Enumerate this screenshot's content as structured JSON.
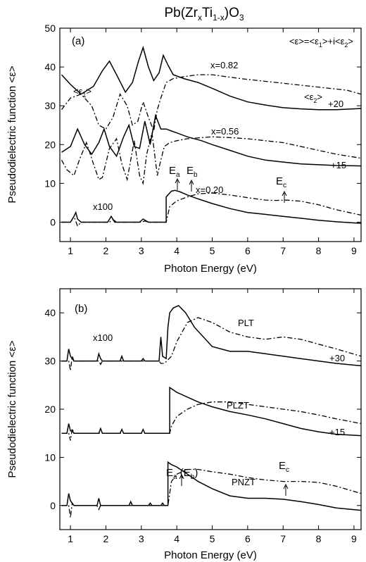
{
  "chart_data": [
    {
      "type": "line",
      "panel": "(a)",
      "title": "Pb(ZrxTi1-x)O3",
      "xlabel": "Photon Energy (eV)",
      "ylabel": "Pseudodielectric function <ε>",
      "xlim": [
        0.7,
        9.2
      ],
      "ylim": [
        -5,
        50
      ],
      "xticks": [
        1,
        2,
        3,
        4,
        5,
        6,
        7,
        8,
        9
      ],
      "yticks": [
        0,
        10,
        20,
        30,
        40,
        50
      ],
      "formula": "<ε>=<ε1>+i<ε2>",
      "annotations": [
        {
          "text": "<ε1>",
          "x": 1.3,
          "y": 36.5
        },
        {
          "text": "<ε2>",
          "x": 7.3,
          "y": 35
        },
        {
          "text": "+20",
          "x": 8.55,
          "y": 33.5
        },
        {
          "text": "x=0.82",
          "x": 5.0,
          "y": 39.5
        },
        {
          "text": "x=0.56",
          "x": 5.0,
          "y": 25.5
        },
        {
          "text": "+15",
          "x": 8.55,
          "y": 17.0
        },
        {
          "text": "x=0.20",
          "x": 4.5,
          "y": 7.8
        },
        {
          "text": "x100",
          "x": 1.5,
          "y": 3.8
        },
        {
          "text": "Ea",
          "x": 3.85,
          "y": 11.5
        },
        {
          "text": "Eb",
          "x": 4.35,
          "y": 11.5
        },
        {
          "text": "Ec",
          "x": 6.9,
          "y": 10.5
        }
      ],
      "arrows_at": [
        3.83,
        4.35,
        7.0
      ],
      "series": [
        {
          "name": "x=0.82 <ε1>",
          "style": "solid",
          "x": [
            0.75,
            1.0,
            1.3,
            1.65,
            1.9,
            2.1,
            2.3,
            2.55,
            2.75,
            2.92,
            3.05,
            3.2,
            3.35,
            3.5,
            3.62,
            3.75,
            3.9,
            4.2,
            4.6,
            5.0,
            5.5,
            6.0,
            6.5,
            7.0,
            7.5,
            8.0,
            8.5,
            9.2
          ],
          "y": [
            38.0,
            35.5,
            33.0,
            35.0,
            39.0,
            41.5,
            38.0,
            33.5,
            36.0,
            41.5,
            45.0,
            40.0,
            36.5,
            38.5,
            43.0,
            40.5,
            38.0,
            37.0,
            36.0,
            34.5,
            32.5,
            31.0,
            30.2,
            29.5,
            29.2,
            29.0,
            29.0,
            29.3
          ]
        },
        {
          "name": "x=0.82 <ε2>",
          "style": "dashdot",
          "x": [
            0.75,
            1.0,
            1.3,
            1.6,
            1.8,
            2.0,
            2.2,
            2.4,
            2.6,
            2.75,
            2.9,
            3.05,
            3.2,
            3.35,
            3.45,
            3.55,
            3.7,
            3.9,
            4.2,
            4.6,
            5.0,
            5.4,
            5.8,
            6.3,
            6.8,
            7.3,
            7.8,
            8.3,
            8.8,
            9.2
          ],
          "y": [
            29.0,
            32.0,
            33.0,
            30.0,
            25.0,
            24.0,
            27.0,
            33.0,
            30.0,
            25.0,
            26.0,
            31.0,
            27.0,
            23.5,
            29.0,
            32.0,
            36.0,
            37.0,
            37.5,
            38.0,
            38.0,
            37.5,
            37.0,
            36.5,
            36.0,
            35.5,
            35.0,
            34.5,
            34.0,
            33.0
          ]
        },
        {
          "name": "x=0.56 <ε1>",
          "style": "solid",
          "x": [
            0.75,
            1.0,
            1.2,
            1.4,
            1.6,
            1.8,
            1.95,
            2.1,
            2.3,
            2.5,
            2.65,
            2.8,
            2.95,
            3.1,
            3.25,
            3.4,
            3.55,
            3.7,
            3.85,
            4.0,
            4.3,
            4.7,
            5.0,
            5.5,
            6.0,
            6.5,
            7.0,
            7.5,
            8.0,
            8.5,
            9.2
          ],
          "y": [
            18.0,
            19.5,
            24.0,
            20.0,
            17.5,
            20.5,
            24.0,
            19.5,
            17.0,
            22.0,
            25.0,
            19.5,
            19.0,
            26.0,
            20.0,
            27.5,
            24.0,
            24.0,
            23.5,
            23.0,
            22.0,
            21.0,
            20.0,
            18.5,
            17.0,
            16.0,
            15.5,
            15.0,
            14.8,
            14.6,
            14.5
          ]
        },
        {
          "name": "x=0.56 <ε2>",
          "style": "dashdot",
          "x": [
            0.75,
            0.9,
            1.1,
            1.25,
            1.45,
            1.65,
            1.8,
            1.9,
            2.1,
            2.3,
            2.45,
            2.6,
            2.8,
            2.95,
            3.05,
            3.15,
            3.3,
            3.45,
            3.55,
            3.65,
            3.8,
            4.0,
            4.3,
            4.7,
            5.0,
            5.5,
            6.0,
            6.5,
            7.0,
            7.5,
            8.0,
            8.5,
            9.2
          ],
          "y": [
            16.0,
            13.5,
            12.0,
            16.0,
            20.5,
            15.0,
            11.0,
            11.5,
            19.0,
            21.5,
            15.0,
            11.0,
            21.0,
            12.0,
            10.0,
            17.5,
            23.0,
            12.0,
            16.0,
            19.5,
            20.5,
            21.0,
            21.5,
            21.8,
            22.0,
            21.8,
            21.5,
            21.0,
            20.5,
            19.5,
            18.5,
            17.5,
            16.5
          ]
        },
        {
          "name": "x=0.20 <ε1>",
          "style": "solid",
          "x": [
            0.75,
            1.0,
            1.1,
            1.15,
            1.2,
            1.3,
            1.6,
            2.05,
            2.15,
            2.25,
            2.5,
            2.95,
            3.05,
            3.2,
            3.5,
            3.7,
            3.7,
            3.85,
            3.95,
            4.1,
            4.3,
            4.6,
            5.0,
            5.5,
            6.0,
            6.5,
            7.0,
            7.5,
            8.0,
            8.5,
            9.2
          ],
          "y": [
            0.0,
            0.0,
            1.5,
            2.5,
            0.8,
            0.0,
            0.0,
            0.0,
            1.5,
            0.0,
            0.0,
            0.0,
            0.8,
            0.0,
            0.0,
            0.0,
            6.5,
            8.0,
            8.2,
            7.8,
            7.0,
            6.0,
            4.8,
            3.5,
            2.5,
            2.0,
            1.5,
            1.0,
            0.5,
            0.1,
            -0.3
          ]
        },
        {
          "name": "x=0.20 <ε2>",
          "style": "dashdot",
          "x": [
            0.75,
            1.0,
            1.1,
            1.2,
            1.3,
            1.6,
            2.1,
            2.2,
            2.3,
            3.0,
            3.1,
            3.2,
            3.7,
            3.8,
            4.0,
            4.3,
            4.6,
            5.0,
            5.5,
            6.0,
            6.5,
            6.8,
            7.1,
            7.5,
            8.0,
            8.5,
            9.2
          ],
          "y": [
            0.0,
            0.0,
            1.5,
            -1.0,
            0.0,
            0.0,
            0.0,
            0.7,
            0.0,
            0.0,
            0.3,
            0.0,
            0.0,
            4.0,
            5.5,
            6.5,
            7.3,
            7.5,
            7.0,
            6.3,
            5.7,
            5.6,
            5.7,
            5.4,
            4.5,
            3.2,
            1.8
          ]
        }
      ]
    },
    {
      "type": "line",
      "panel": "(b)",
      "xlabel": "Photon Energy (eV)",
      "ylabel": "Pseudodielectric function <ε>",
      "xlim": [
        0.7,
        9.2
      ],
      "ylim": [
        -5,
        45
      ],
      "xticks": [
        1,
        2,
        3,
        4,
        5,
        6,
        7,
        8,
        9
      ],
      "yticks": [
        0,
        10,
        20,
        30,
        40
      ],
      "annotations": [
        {
          "text": "x100",
          "x": 1.5,
          "y": 35.0
        },
        {
          "text": "PLT",
          "x": 5.5,
          "y": 41.0
        },
        {
          "text": "+30",
          "x": 8.4,
          "y": 32.5
        },
        {
          "text": "PLZT",
          "x": 5.3,
          "y": 25.5
        },
        {
          "text": "+15",
          "x": 8.4,
          "y": 17.5
        },
        {
          "text": "Ea (Eb)",
          "x": 4.2,
          "y": 11.0
        },
        {
          "text": "PNZT",
          "x": 5.5,
          "y": 7.5
        },
        {
          "text": "Ec",
          "x": 6.9,
          "y": 11.0
        }
      ],
      "arrows_at": [
        4.1,
        7.0
      ],
      "series": [
        {
          "name": "PLT <ε1>",
          "style": "solid",
          "x": [
            0.75,
            0.9,
            0.95,
            1.0,
            1.05,
            1.1,
            1.3,
            1.75,
            1.8,
            1.85,
            1.9,
            2.4,
            2.45,
            2.5,
            2.8,
            3.0,
            3.05,
            3.1,
            3.5,
            3.55,
            3.6,
            3.7,
            3.75,
            3.8,
            3.9,
            4.05,
            4.25,
            4.5,
            5.0,
            5.5,
            6.0,
            6.5,
            7.0,
            7.5,
            8.0,
            8.5,
            9.2
          ],
          "y": [
            30.0,
            30.0,
            32.5,
            31.0,
            30.5,
            30.0,
            30.0,
            30.0,
            31.5,
            30.5,
            30.0,
            30.0,
            31.0,
            30.0,
            30.0,
            30.0,
            30.5,
            30.0,
            30.0,
            35.0,
            31.0,
            30.5,
            37.0,
            40.0,
            41.0,
            41.5,
            40.0,
            37.0,
            33.0,
            32.0,
            32.0,
            31.5,
            31.0,
            30.5,
            30.0,
            29.5,
            29.0
          ]
        },
        {
          "name": "PLT <ε2>",
          "style": "dashdot",
          "x": [
            0.75,
            0.95,
            1.0,
            1.05,
            1.1,
            1.8,
            1.85,
            1.9,
            3.5,
            3.55,
            3.65,
            3.85,
            4.0,
            4.3,
            4.6,
            5.0,
            5.5,
            6.0,
            6.5,
            7.0,
            7.5,
            8.0,
            8.5,
            9.2
          ],
          "y": [
            30.0,
            30.0,
            28.0,
            31.0,
            30.0,
            30.0,
            29.3,
            30.0,
            30.0,
            29.5,
            29.5,
            31.0,
            34.0,
            38.0,
            39.0,
            38.0,
            36.0,
            35.0,
            34.5,
            35.0,
            34.5,
            33.5,
            32.5,
            31.0
          ]
        },
        {
          "name": "PLZT <ε1>",
          "style": "solid",
          "x": [
            0.75,
            0.9,
            0.95,
            1.0,
            1.05,
            1.1,
            1.8,
            1.85,
            1.9,
            2.4,
            2.45,
            2.5,
            3.0,
            3.05,
            3.1,
            3.8,
            3.8,
            3.9,
            4.0,
            4.3,
            4.6,
            5.0,
            5.5,
            6.0,
            6.5,
            7.0,
            7.5,
            8.0,
            8.5,
            9.2
          ],
          "y": [
            15.0,
            15.0,
            17.0,
            15.5,
            15.5,
            15.0,
            15.0,
            16.0,
            15.0,
            15.0,
            15.8,
            15.0,
            15.0,
            15.8,
            15.0,
            15.0,
            24.5,
            24.0,
            23.5,
            22.5,
            21.5,
            20.5,
            19.5,
            18.8,
            18.0,
            17.0,
            16.0,
            15.3,
            14.8,
            14.5
          ]
        },
        {
          "name": "PLZT <ε2>",
          "style": "dashdot",
          "x": [
            0.75,
            0.95,
            1.0,
            1.05,
            1.1,
            3.8,
            3.85,
            4.0,
            4.3,
            4.6,
            5.0,
            5.5,
            6.0,
            6.5,
            7.0,
            7.5,
            8.0,
            8.5,
            9.2
          ],
          "y": [
            15.0,
            15.0,
            13.5,
            16.0,
            15.0,
            15.0,
            16.5,
            18.5,
            20.0,
            21.0,
            21.5,
            21.5,
            21.0,
            20.5,
            20.0,
            19.5,
            18.8,
            18.0,
            17.0
          ]
        },
        {
          "name": "PNZT <ε1>",
          "style": "solid",
          "x": [
            0.75,
            0.9,
            0.95,
            1.0,
            1.05,
            1.1,
            1.75,
            1.8,
            1.85,
            2.65,
            2.7,
            2.75,
            3.2,
            3.25,
            3.3,
            3.55,
            3.6,
            3.65,
            3.75,
            3.75,
            3.85,
            4.0,
            4.3,
            4.6,
            5.0,
            5.5,
            6.0,
            6.5,
            7.0,
            7.5,
            8.0,
            8.5,
            9.2
          ],
          "y": [
            0.0,
            0.0,
            2.5,
            1.0,
            0.5,
            0.0,
            0.0,
            1.5,
            0.0,
            0.0,
            0.8,
            0.0,
            0.0,
            0.5,
            0.0,
            0.0,
            0.5,
            0.0,
            0.0,
            9.0,
            8.5,
            8.0,
            6.5,
            5.0,
            3.5,
            2.0,
            1.5,
            1.5,
            1.3,
            0.8,
            0.2,
            -0.5,
            -1.0
          ]
        },
        {
          "name": "PNZT <ε2>",
          "style": "dashdot",
          "x": [
            0.75,
            0.95,
            1.0,
            1.05,
            1.1,
            1.75,
            1.8,
            1.85,
            3.75,
            3.85,
            4.0,
            4.3,
            4.6,
            5.0,
            5.5,
            6.0,
            6.5,
            7.0,
            7.5,
            8.0,
            8.5,
            9.2
          ],
          "y": [
            0.0,
            0.0,
            -2.5,
            0.5,
            0.0,
            0.0,
            -0.8,
            0.0,
            0.0,
            5.0,
            6.5,
            7.5,
            7.5,
            7.0,
            6.5,
            5.8,
            5.3,
            5.0,
            5.0,
            4.8,
            4.0,
            2.5
          ]
        }
      ]
    }
  ],
  "texts": {
    "title_main": "Pb(Zr",
    "title_x": "x",
    "title_ti": "Ti",
    "title_1x": "1-x",
    "title_end": ")O",
    "title_3": "3",
    "panel_a_label": "(a)",
    "panel_b_label": "(b)",
    "xlabel_a": "Photon Energy (eV)",
    "xlabel_b": "Photon Energy (eV)",
    "ylabel_a": "Pseudodielectric function <ε>",
    "ylabel_b": "Pseudodielectric function <ε>",
    "formula_left": "<ε>=<ε",
    "formula_sub1": "1",
    "formula_mid": ">+i<ε",
    "formula_sub2": "2",
    "formula_end": ">",
    "eps1_a": "<ε",
    "eps1_a_sub": "1",
    "eps1_a_end": ">",
    "eps2_a": "<ε",
    "eps2_a_sub": "2",
    "eps2_a_end": ">",
    "plus20": "+20",
    "x082": "x=0.82",
    "x056": "x=0.56",
    "plus15_a": "+15",
    "x020": "x=0.20",
    "x100_a": "x100",
    "ea_a": "E",
    "ea_a_sub": "a",
    "eb_a": "E",
    "eb_a_sub": "b",
    "ec_a": "E",
    "ec_a_sub": "c",
    "x100_b": "x100",
    "plt": "PLT",
    "plus30": "+30",
    "plzt": "PLZT",
    "plus15_b": "+15",
    "ea_b": "E",
    "ea_b_sub": "a",
    "ea_b_paren": " (E",
    "ea_b_sub2": "b",
    "ea_b_close": ")",
    "pnzt": "PNZT",
    "ec_b": "E",
    "ec_b_sub": "c"
  }
}
